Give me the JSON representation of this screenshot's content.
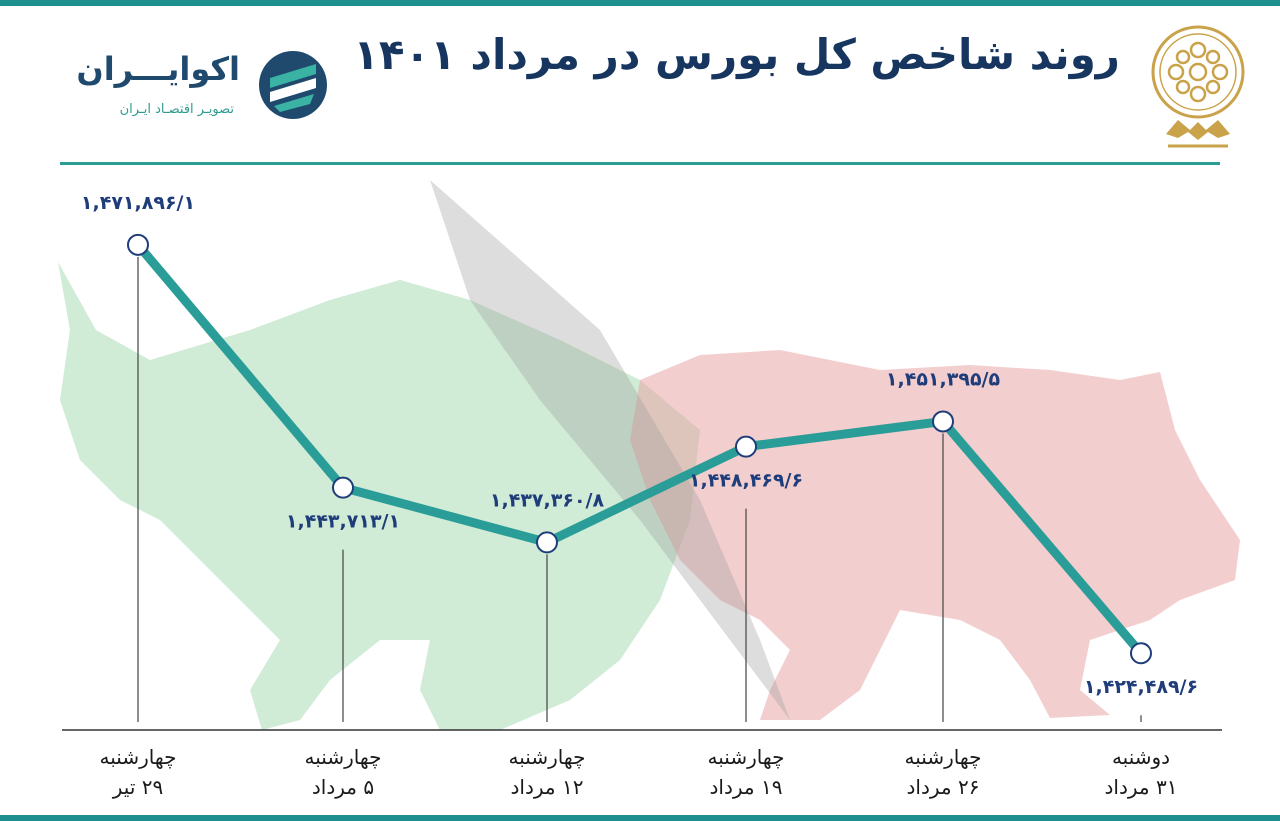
{
  "header": {
    "title": "روند شاخص کل بورس در مرداد ۱۴۰۱",
    "brand_name": "اکوایـــران",
    "brand_tagline": "تصویـر اقتصـاد ایـران"
  },
  "colors": {
    "accent": "#1c8f8e",
    "line": "#2a9d98",
    "title": "#16365f",
    "value_label": "#1f3d7a",
    "bull": "#a9dbb4",
    "bear": "#e9a6a6",
    "emblem": "#c9a24a"
  },
  "icons": [
    "stock-exchange-emblem-icon",
    "ecoiran-logo-icon",
    "bull-silhouette-icon",
    "bear-silhouette-icon"
  ],
  "chart_data": {
    "type": "line",
    "categories": [
      {
        "day": "چهارشنبه",
        "date": "۲۹ تیر"
      },
      {
        "day": "چهارشنبه",
        "date": "۵ مرداد"
      },
      {
        "day": "چهارشنبه",
        "date": "۱۲ مرداد"
      },
      {
        "day": "چهارشنبه",
        "date": "۱۹ مرداد"
      },
      {
        "day": "چهارشنبه",
        "date": "۲۶ مرداد"
      },
      {
        "day": "دوشنبه",
        "date": "۳۱ مرداد"
      }
    ],
    "values": [
      1471896.1,
      1443713.1,
      1437360.8,
      1448469.6,
      1451395.5,
      1424489.6
    ],
    "value_labels": [
      "۱,۴۷۱,۸۹۶/۱",
      "۱,۴۴۳,۷۱۳/۱",
      "۱,۴۳۷,۳۶۰/۸",
      "۱,۴۴۸,۴۶۹/۶",
      "۱,۴۵۱,۳۹۵/۵",
      "۱,۴۲۴,۴۸۹/۶"
    ],
    "label_position": [
      "above",
      "below",
      "above",
      "below",
      "above",
      "below"
    ],
    "ylim": [
      1415000,
      1480000
    ],
    "grid": false,
    "legend": "none"
  }
}
